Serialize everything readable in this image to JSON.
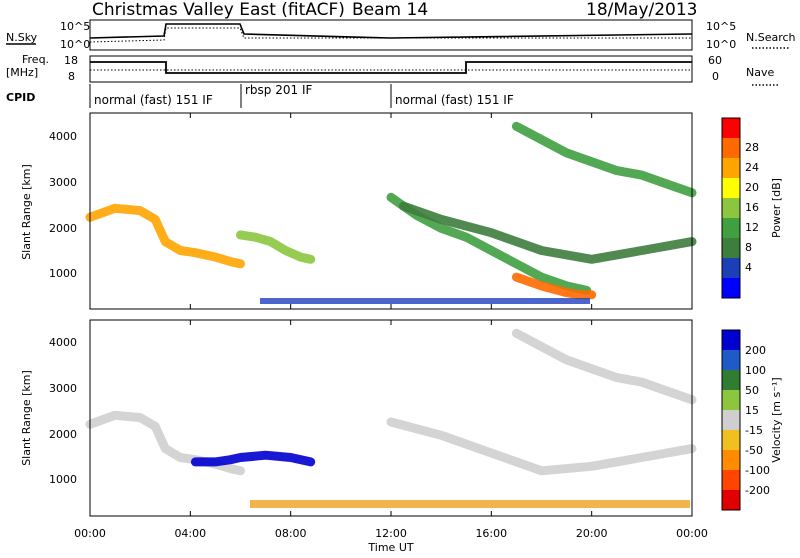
{
  "header": {
    "station": "Christmas Valley East (fitACF)",
    "beam": "Beam 14",
    "date": "18/May/2013"
  },
  "top_panels": {
    "nsky_label": "N.Sky",
    "nsearch_label": "N.Search",
    "noise_ticks": [
      "10^5",
      "10^0"
    ],
    "freq_label": "Freq.",
    "freq_unit": "[MHz]",
    "freq_ticks": [
      "18",
      "8"
    ],
    "nave_label": "Nave",
    "nave_ticks": [
      "60",
      "0"
    ],
    "cpid_label": "CPID",
    "cpid_segments": [
      {
        "label": "normal (fast) 151 IF",
        "start_hour": 0.0,
        "end_hour": 6.0
      },
      {
        "label": "rbsp 201 IF",
        "start_hour": 6.0,
        "end_hour": 12.0
      },
      {
        "label": "normal (fast) 151 IF",
        "start_hour": 12.0,
        "end_hour": 24.0
      }
    ]
  },
  "panels": {
    "ylabel": "Slant Range [km]",
    "yticks": [
      "4000",
      "3000",
      "2000",
      "1000"
    ],
    "xticks": [
      "00:00",
      "04:00",
      "08:00",
      "12:00",
      "16:00",
      "20:00",
      "00:00"
    ],
    "xlabel": "Time UT"
  },
  "colorbars": {
    "power": {
      "label": "Power [dB]",
      "ticks": [
        "28",
        "24",
        "20",
        "16",
        "12",
        "8",
        "4"
      ],
      "colors": [
        "#0000ff",
        "#1c3fb8",
        "#3d7d3d",
        "#40a040",
        "#8cc63f",
        "#ffff00",
        "#ffa500",
        "#ff6a00",
        "#ff0000"
      ]
    },
    "velocity": {
      "label": "Velocity [m s⁻¹]",
      "ticks": [
        "200",
        "100",
        "50",
        "15",
        "-15",
        "-50",
        "-100",
        "-200"
      ],
      "colors": [
        "#0000d0",
        "#1e5ac8",
        "#2e7d32",
        "#8cc63f",
        "#cfcfcf",
        "#f0c020",
        "#ff8c00",
        "#ff4500",
        "#e00000"
      ]
    }
  },
  "chart_data": {
    "type": "heatmap",
    "title": "Christmas Valley East (fitACF)",
    "xlabel": "Time UT",
    "ylabel": "Slant Range [km]",
    "xlim": [
      0,
      24
    ],
    "ylim": [
      180,
      4600
    ],
    "series": [
      {
        "name": "Power [dB]",
        "clim": [
          0,
          30
        ],
        "bands": [
          {
            "x": [
              0.0,
              1.0,
              2.0,
              2.6,
              3.0,
              3.6,
              4.2,
              5.0,
              5.6,
              6.0
            ],
            "y": [
              2250,
              2450,
              2400,
              2200,
              1700,
              1500,
              1450,
              1350,
              1250,
              1200
            ],
            "value": 22
          },
          {
            "x": [
              6.0,
              6.6,
              7.2,
              7.8,
              8.4,
              8.8
            ],
            "y": [
              1850,
              1800,
              1700,
              1500,
              1350,
              1300
            ],
            "value": 14
          },
          {
            "x": [
              12.0,
              13.0,
              14.0,
              15.0,
              16.0,
              17.0,
              18.0,
              19.0,
              19.8
            ],
            "y": [
              2700,
              2300,
              2000,
              1800,
              1500,
              1200,
              900,
              700,
              600
            ],
            "value": 12
          },
          {
            "x": [
              17.0,
              18.0,
              19.0,
              19.5,
              20.0
            ],
            "y": [
              900,
              700,
              550,
              500,
              500
            ],
            "value": 26
          },
          {
            "x": [
              17.0,
              18.0,
              19.0,
              20.0,
              21.0,
              22.0,
              23.0,
              24.0
            ],
            "y": [
              4300,
              4000,
              3700,
              3500,
              3300,
              3200,
              3000,
              2800
            ],
            "value": 10
          },
          {
            "x": [
              12.5,
              14.0,
              16.0,
              18.0,
              20.0,
              22.0,
              24.0
            ],
            "y": [
              2500,
              2200,
              1900,
              1500,
              1300,
              1500,
              1700
            ],
            "value": 8
          }
        ]
      },
      {
        "name": "Velocity",
        "clim": [
          -200,
          200
        ],
        "bands": [
          {
            "x": [
              0.0,
              1.0,
              2.0,
              2.6,
              3.0,
              3.6,
              4.2,
              5.0,
              5.6,
              6.0
            ],
            "y": [
              2250,
              2450,
              2400,
              2200,
              1700,
              1500,
              1450,
              1350,
              1250,
              1200
            ],
            "value": 0
          },
          {
            "x": [
              4.2,
              5.0,
              5.6,
              6.0,
              7.0,
              8.0,
              8.8
            ],
            "y": [
              1400,
              1400,
              1450,
              1500,
              1550,
              1500,
              1400
            ],
            "value": 220
          },
          {
            "x": [
              12.0,
              14.0,
              16.0,
              18.0,
              20.0,
              22.0,
              24.0
            ],
            "y": [
              2300,
              2000,
              1600,
              1200,
              1300,
              1500,
              1700
            ],
            "value": 0
          },
          {
            "x": [
              17.0,
              18.0,
              19.0,
              20.0,
              21.0,
              22.0,
              23.0,
              24.0
            ],
            "y": [
              4300,
              4000,
              3700,
              3500,
              3300,
              3200,
              3000,
              2800
            ],
            "value": 0
          }
        ]
      }
    ]
  }
}
